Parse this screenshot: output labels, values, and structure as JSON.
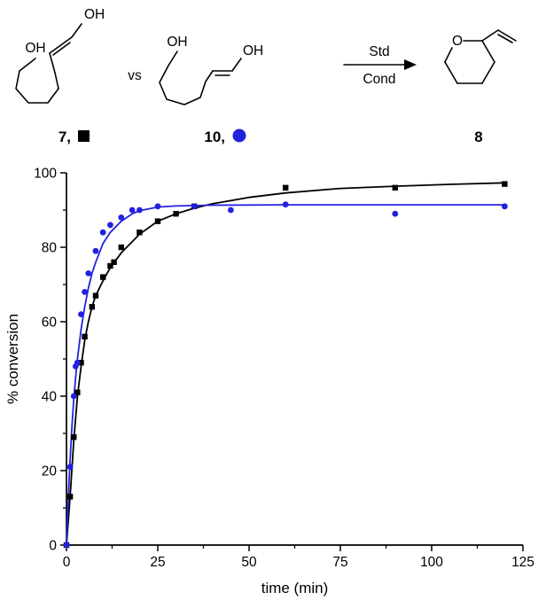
{
  "scheme": {
    "oh": "OH",
    "vs": "vs",
    "arrow_top": "Std",
    "arrow_bottom": "Cond",
    "ring_o": "O",
    "left_label": "7,",
    "middle_label": "10,",
    "product_label": "8"
  },
  "chart_data": {
    "type": "scatter",
    "title": "",
    "xlabel": "time (min)",
    "ylabel": "% conversion",
    "xlim": [
      0,
      125
    ],
    "ylim": [
      0,
      100
    ],
    "xticks": [
      0,
      25,
      50,
      75,
      100,
      125
    ],
    "yticks": [
      0,
      20,
      40,
      60,
      80,
      100
    ],
    "x_minor_step": 12.5,
    "y_minor_step": 10,
    "grid": false,
    "legend_position": "none",
    "series": [
      {
        "name": "7",
        "marker": "square",
        "color": "#000000",
        "points": [
          [
            0,
            0
          ],
          [
            1,
            13
          ],
          [
            2,
            29
          ],
          [
            3,
            41
          ],
          [
            4,
            49
          ],
          [
            5,
            56
          ],
          [
            7,
            64
          ],
          [
            8,
            67
          ],
          [
            10,
            72
          ],
          [
            12,
            75
          ],
          [
            13,
            76
          ],
          [
            15,
            80
          ],
          [
            20,
            84
          ],
          [
            25,
            87
          ],
          [
            30,
            89
          ],
          [
            35,
            91
          ],
          [
            60,
            96
          ],
          [
            90,
            96
          ],
          [
            120,
            97
          ]
        ],
        "fit_curve": [
          [
            0,
            0
          ],
          [
            1,
            13
          ],
          [
            2,
            28
          ],
          [
            3,
            40
          ],
          [
            4,
            48
          ],
          [
            5,
            55
          ],
          [
            6,
            60
          ],
          [
            7,
            64
          ],
          [
            8,
            67
          ],
          [
            10,
            71
          ],
          [
            12,
            74.5
          ],
          [
            15,
            78.5
          ],
          [
            20,
            83.5
          ],
          [
            25,
            87
          ],
          [
            30,
            89
          ],
          [
            35,
            90.5
          ],
          [
            40,
            91.7
          ],
          [
            50,
            93.4
          ],
          [
            60,
            94.6
          ],
          [
            75,
            95.8
          ],
          [
            90,
            96.4
          ],
          [
            105,
            96.9
          ],
          [
            120,
            97.3
          ]
        ]
      },
      {
        "name": "10",
        "marker": "circle",
        "color": "#2222dd",
        "points": [
          [
            0,
            0
          ],
          [
            1,
            21
          ],
          [
            2,
            40
          ],
          [
            2.5,
            48
          ],
          [
            3,
            49
          ],
          [
            4,
            62
          ],
          [
            5,
            68
          ],
          [
            6,
            73
          ],
          [
            8,
            79
          ],
          [
            10,
            84
          ],
          [
            12,
            86
          ],
          [
            15,
            88
          ],
          [
            18,
            90
          ],
          [
            20,
            90
          ],
          [
            25,
            91
          ],
          [
            35,
            91
          ],
          [
            45,
            90
          ],
          [
            60,
            91.5
          ],
          [
            90,
            89
          ],
          [
            120,
            91
          ]
        ],
        "fit_curve": [
          [
            0,
            0
          ],
          [
            0.5,
            13
          ],
          [
            1,
            23
          ],
          [
            1.5,
            32
          ],
          [
            2,
            39
          ],
          [
            2.5,
            45
          ],
          [
            3,
            50
          ],
          [
            4,
            58
          ],
          [
            5,
            64
          ],
          [
            6,
            69
          ],
          [
            7,
            73
          ],
          [
            8,
            76
          ],
          [
            10,
            81
          ],
          [
            12,
            84
          ],
          [
            15,
            87
          ],
          [
            18,
            89
          ],
          [
            20,
            89.8
          ],
          [
            25,
            90.8
          ],
          [
            30,
            91.1
          ],
          [
            40,
            91.3
          ],
          [
            60,
            91.4
          ],
          [
            90,
            91.4
          ],
          [
            120,
            91.4
          ]
        ]
      }
    ]
  }
}
